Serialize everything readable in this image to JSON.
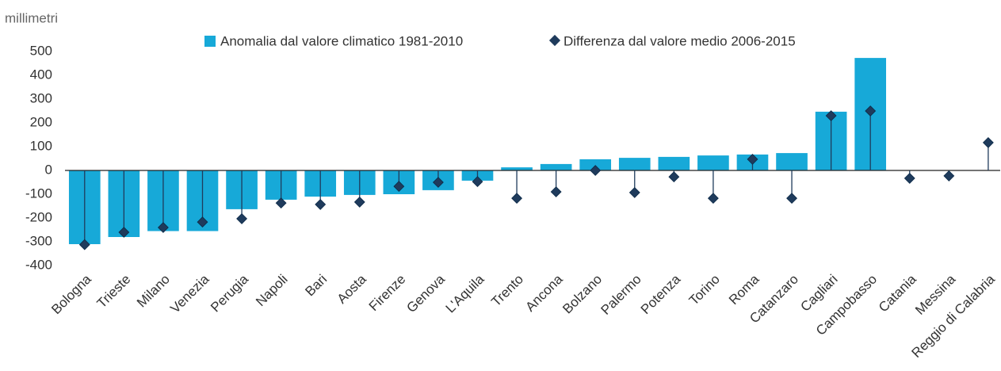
{
  "chart_data": {
    "type": "bar",
    "y_label": "millimetri",
    "categories": [
      "Bologna",
      "Trieste",
      "Milano",
      "Venezia",
      "Perugia",
      "Napoli",
      "Bari",
      "Aosta",
      "Firenze",
      "Genova",
      "L'Aquila",
      "Trento",
      "Ancona",
      "Bolzano",
      "Palermo",
      "Potenza",
      "Torino",
      "Roma",
      "Catanzaro",
      "Cagliari",
      "Campobasso",
      "Catania",
      "Messina",
      "Reggio di Calabria"
    ],
    "series": [
      {
        "name": "Anomalia dal valore climatico 1981-2010",
        "type": "bar",
        "color": "#17a9d8",
        "values": [
          -310,
          -280,
          -255,
          -255,
          -163,
          -123,
          -110,
          -103,
          -100,
          -83,
          -43,
          13,
          27,
          47,
          53,
          57,
          63,
          67,
          73,
          247,
          473,
          null,
          null,
          null
        ]
      },
      {
        "name": "Differenza dal valore medio 2006-2015",
        "type": "stem",
        "color": "#1f3b5c",
        "values": [
          -312,
          -260,
          -240,
          -217,
          -203,
          -137,
          -143,
          -133,
          -67,
          -50,
          -47,
          -117,
          -90,
          0,
          -93,
          -27,
          -117,
          47,
          -117,
          230,
          250,
          -33,
          -23,
          117
        ]
      }
    ],
    "ylim": [
      -400,
      500
    ],
    "yticks": [
      -400,
      -300,
      -200,
      -100,
      0,
      100,
      200,
      300,
      400,
      500
    ],
    "grid": false
  }
}
